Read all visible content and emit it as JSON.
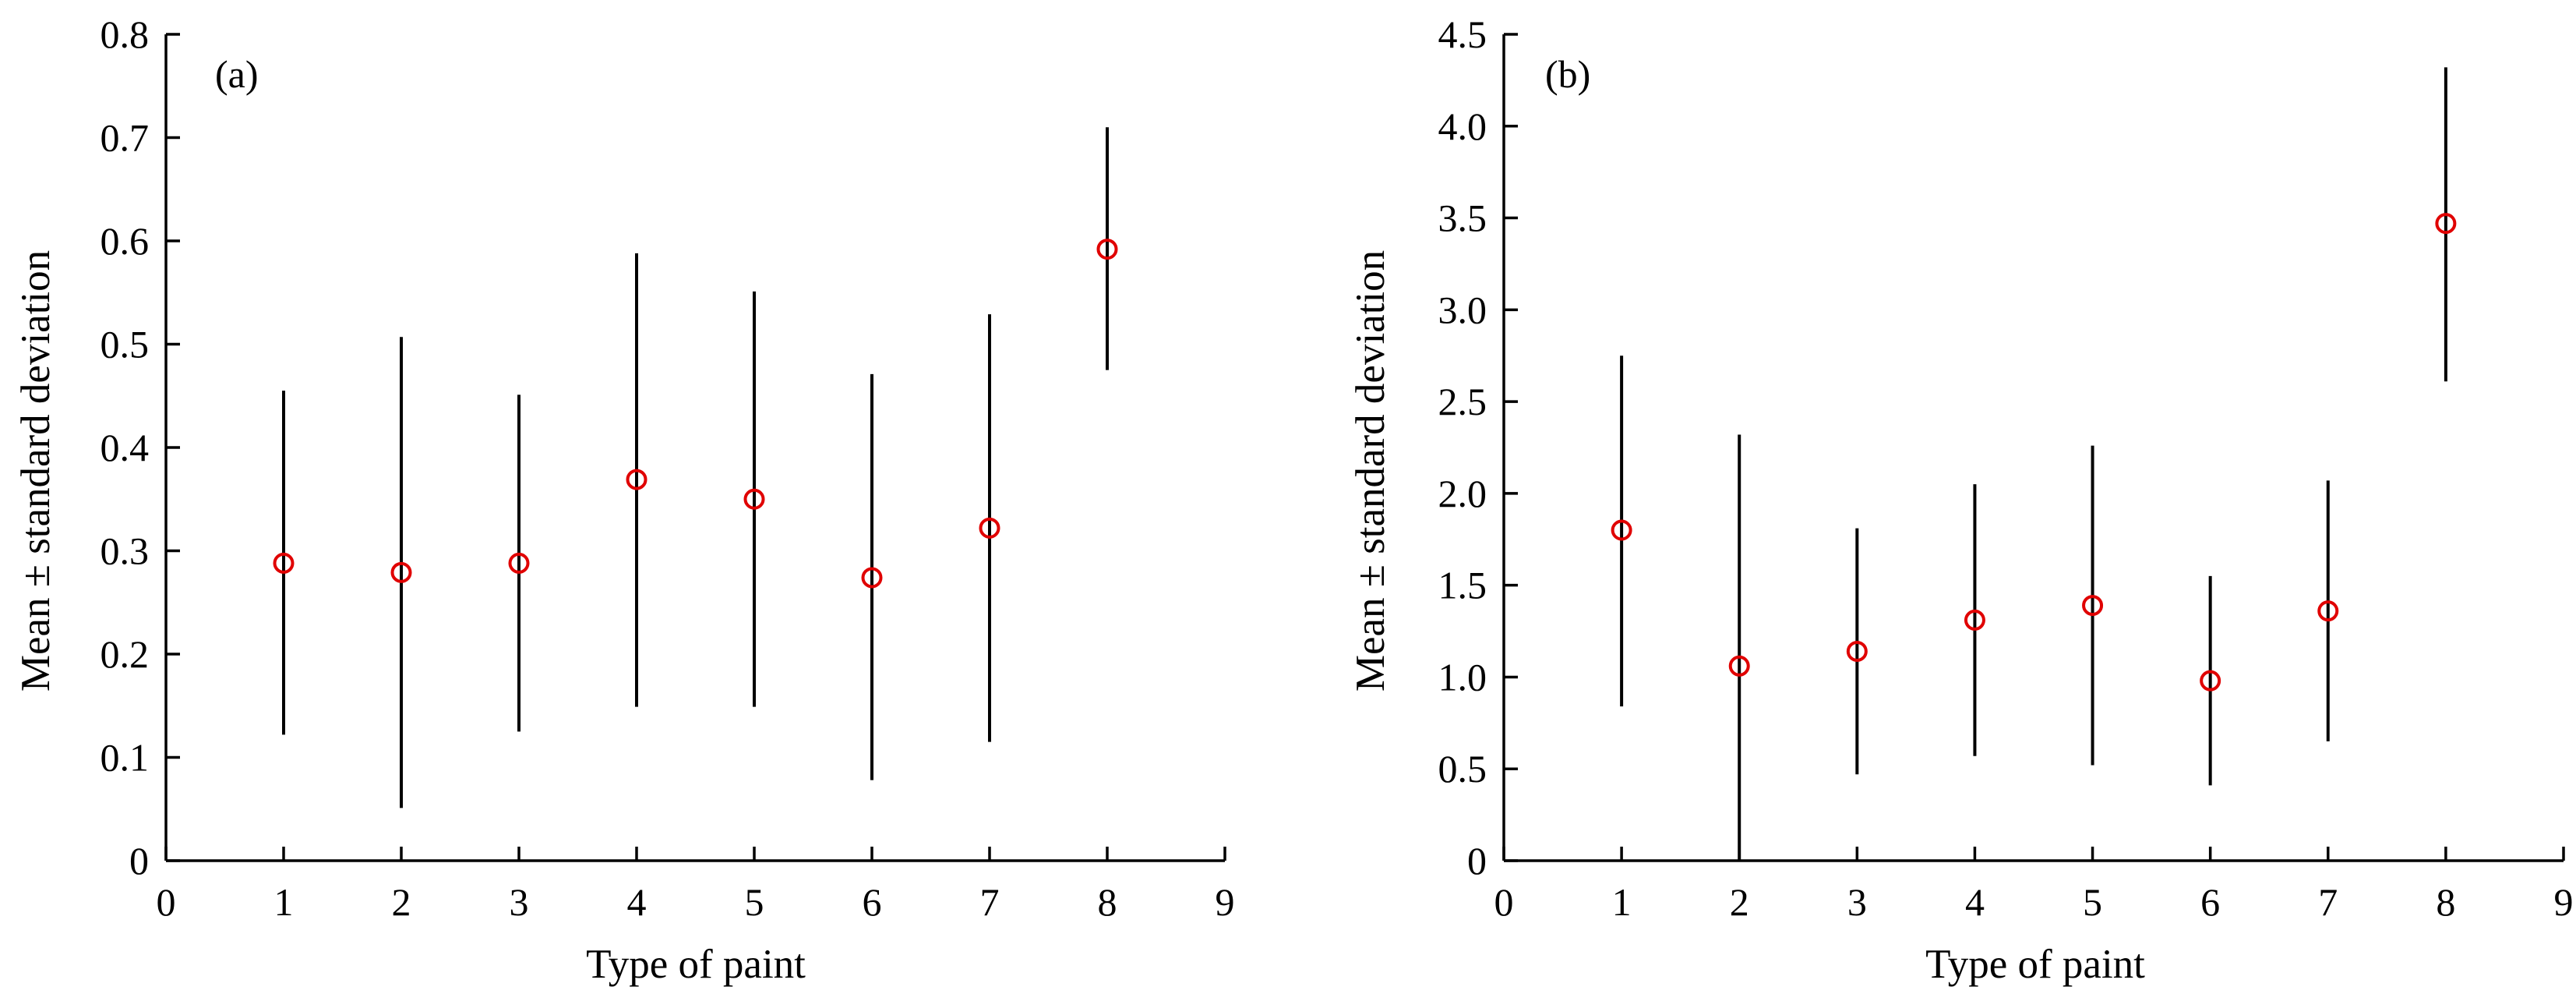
{
  "chart_data": [
    {
      "type": "scatter",
      "panel_label": "(a)",
      "title": "",
      "xlabel": "Type of paint",
      "ylabel": "Mean ± standard deviation",
      "xlim": [
        0,
        9
      ],
      "ylim": [
        0,
        0.8
      ],
      "xticks": [
        "0",
        "1",
        "2",
        "3",
        "4",
        "5",
        "6",
        "7",
        "8",
        "9"
      ],
      "yticks": [
        "0",
        "0.1",
        "0.2",
        "0.3",
        "0.4",
        "0.5",
        "0.6",
        "0.7",
        "0.8"
      ],
      "grid": false,
      "marker_color": "#e00000",
      "errorbar_color": "#000000",
      "points": [
        {
          "x": 1,
          "mean": 0.288,
          "lower": 0.122,
          "upper": 0.455
        },
        {
          "x": 2,
          "mean": 0.279,
          "lower": 0.051,
          "upper": 0.507
        },
        {
          "x": 3,
          "mean": 0.288,
          "lower": 0.125,
          "upper": 0.451
        },
        {
          "x": 4,
          "mean": 0.369,
          "lower": 0.149,
          "upper": 0.588
        },
        {
          "x": 5,
          "mean": 0.35,
          "lower": 0.149,
          "upper": 0.551
        },
        {
          "x": 6,
          "mean": 0.274,
          "lower": 0.078,
          "upper": 0.471
        },
        {
          "x": 7,
          "mean": 0.322,
          "lower": 0.115,
          "upper": 0.529
        },
        {
          "x": 8,
          "mean": 0.592,
          "lower": 0.475,
          "upper": 0.71
        }
      ]
    },
    {
      "type": "scatter",
      "panel_label": "(b)",
      "title": "",
      "xlabel": "Type of paint",
      "ylabel": "Mean ± standard deviation",
      "xlim": [
        0,
        9
      ],
      "ylim": [
        0,
        4.5
      ],
      "xticks": [
        "0",
        "1",
        "2",
        "3",
        "4",
        "5",
        "6",
        "7",
        "8",
        "9"
      ],
      "yticks": [
        "0",
        "0.5",
        "1.0",
        "1.5",
        "2.0",
        "2.5",
        "3.0",
        "3.5",
        "4.0",
        "4.5"
      ],
      "grid": false,
      "marker_color": "#e00000",
      "errorbar_color": "#000000",
      "points": [
        {
          "x": 1,
          "mean": 1.8,
          "lower": 0.84,
          "upper": 2.75
        },
        {
          "x": 2,
          "mean": 1.06,
          "lower": 0.0,
          "upper": 2.32
        },
        {
          "x": 3,
          "mean": 1.14,
          "lower": 0.47,
          "upper": 1.81
        },
        {
          "x": 4,
          "mean": 1.31,
          "lower": 0.57,
          "upper": 2.05
        },
        {
          "x": 5,
          "mean": 1.39,
          "lower": 0.52,
          "upper": 2.26
        },
        {
          "x": 6,
          "mean": 0.98,
          "lower": 0.41,
          "upper": 1.55
        },
        {
          "x": 7,
          "mean": 1.36,
          "lower": 0.65,
          "upper": 2.07
        },
        {
          "x": 8,
          "mean": 3.47,
          "lower": 2.61,
          "upper": 4.32
        }
      ]
    }
  ]
}
